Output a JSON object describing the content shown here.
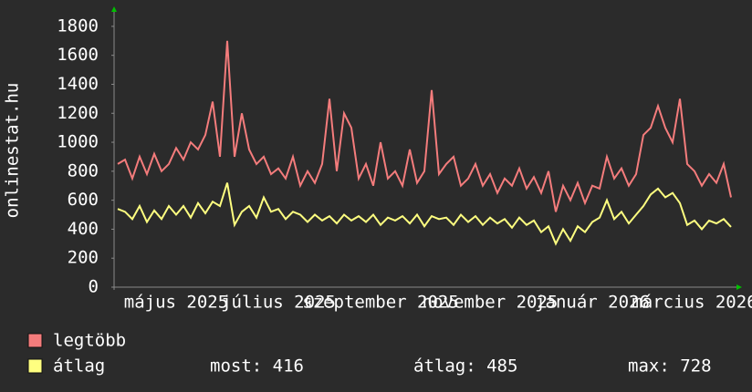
{
  "chart_data": {
    "type": "line",
    "y_label": "onlinestat.hu",
    "categories": [
      null,
      null,
      null,
      null,
      null,
      null,
      null,
      null,
      "május 2025",
      null,
      null,
      null,
      null,
      null,
      null,
      null,
      null,
      null,
      null,
      null,
      null,
      null,
      "július 2025",
      null,
      null,
      null,
      null,
      null,
      null,
      null,
      null,
      null,
      null,
      null,
      null,
      null,
      "szeptember 2025",
      null,
      null,
      null,
      null,
      null,
      null,
      null,
      null,
      null,
      null,
      null,
      null,
      null,
      null,
      "november 2025",
      null,
      null,
      null,
      null,
      null,
      null,
      null,
      null,
      null,
      null,
      null,
      null,
      null,
      "január 2026",
      null,
      null,
      null,
      null,
      null,
      null,
      null,
      null,
      null,
      null,
      null,
      null,
      null,
      "március 2026",
      null,
      null,
      null,
      null,
      null
    ],
    "series": [
      {
        "name": "legtöbb",
        "color": "#f47c7c",
        "values": [
          850,
          880,
          750,
          900,
          780,
          920,
          800,
          850,
          960,
          880,
          1000,
          950,
          1050,
          1280,
          900,
          1700,
          900,
          1200,
          950,
          850,
          900,
          780,
          820,
          750,
          900,
          700,
          800,
          720,
          850,
          1300,
          800,
          1200,
          1100,
          750,
          850,
          700,
          1000,
          750,
          800,
          700,
          950,
          720,
          800,
          1360,
          780,
          850,
          900,
          700,
          750,
          850,
          700,
          780,
          650,
          750,
          700,
          820,
          680,
          760,
          650,
          800,
          520,
          700,
          600,
          720,
          580,
          700,
          680,
          900,
          750,
          820,
          700,
          780,
          1050,
          1100,
          1250,
          1100,
          1000,
          1300,
          850,
          800,
          700,
          780,
          720,
          850,
          620
        ]
      },
      {
        "name": "átlag",
        "color": "#ffff80",
        "values": [
          540,
          520,
          470,
          560,
          450,
          530,
          470,
          560,
          500,
          560,
          480,
          580,
          510,
          590,
          560,
          720,
          430,
          520,
          560,
          480,
          620,
          520,
          540,
          470,
          520,
          500,
          450,
          500,
          460,
          490,
          440,
          500,
          460,
          490,
          450,
          500,
          430,
          480,
          460,
          490,
          440,
          500,
          420,
          490,
          470,
          480,
          430,
          500,
          450,
          490,
          430,
          480,
          440,
          470,
          410,
          480,
          430,
          460,
          380,
          420,
          300,
          400,
          320,
          420,
          380,
          450,
          480,
          600,
          470,
          520,
          440,
          500,
          560,
          640,
          680,
          620,
          650,
          580,
          430,
          460,
          400,
          460,
          440,
          470,
          416
        ]
      }
    ],
    "stats": [
      "most: 416",
      "átlag: 485",
      "max: 728"
    ],
    "ylim": [
      0,
      1900
    ],
    "yticks": [
      0,
      200,
      400,
      600,
      800,
      1000,
      1200,
      1400,
      1600,
      1800
    ]
  }
}
